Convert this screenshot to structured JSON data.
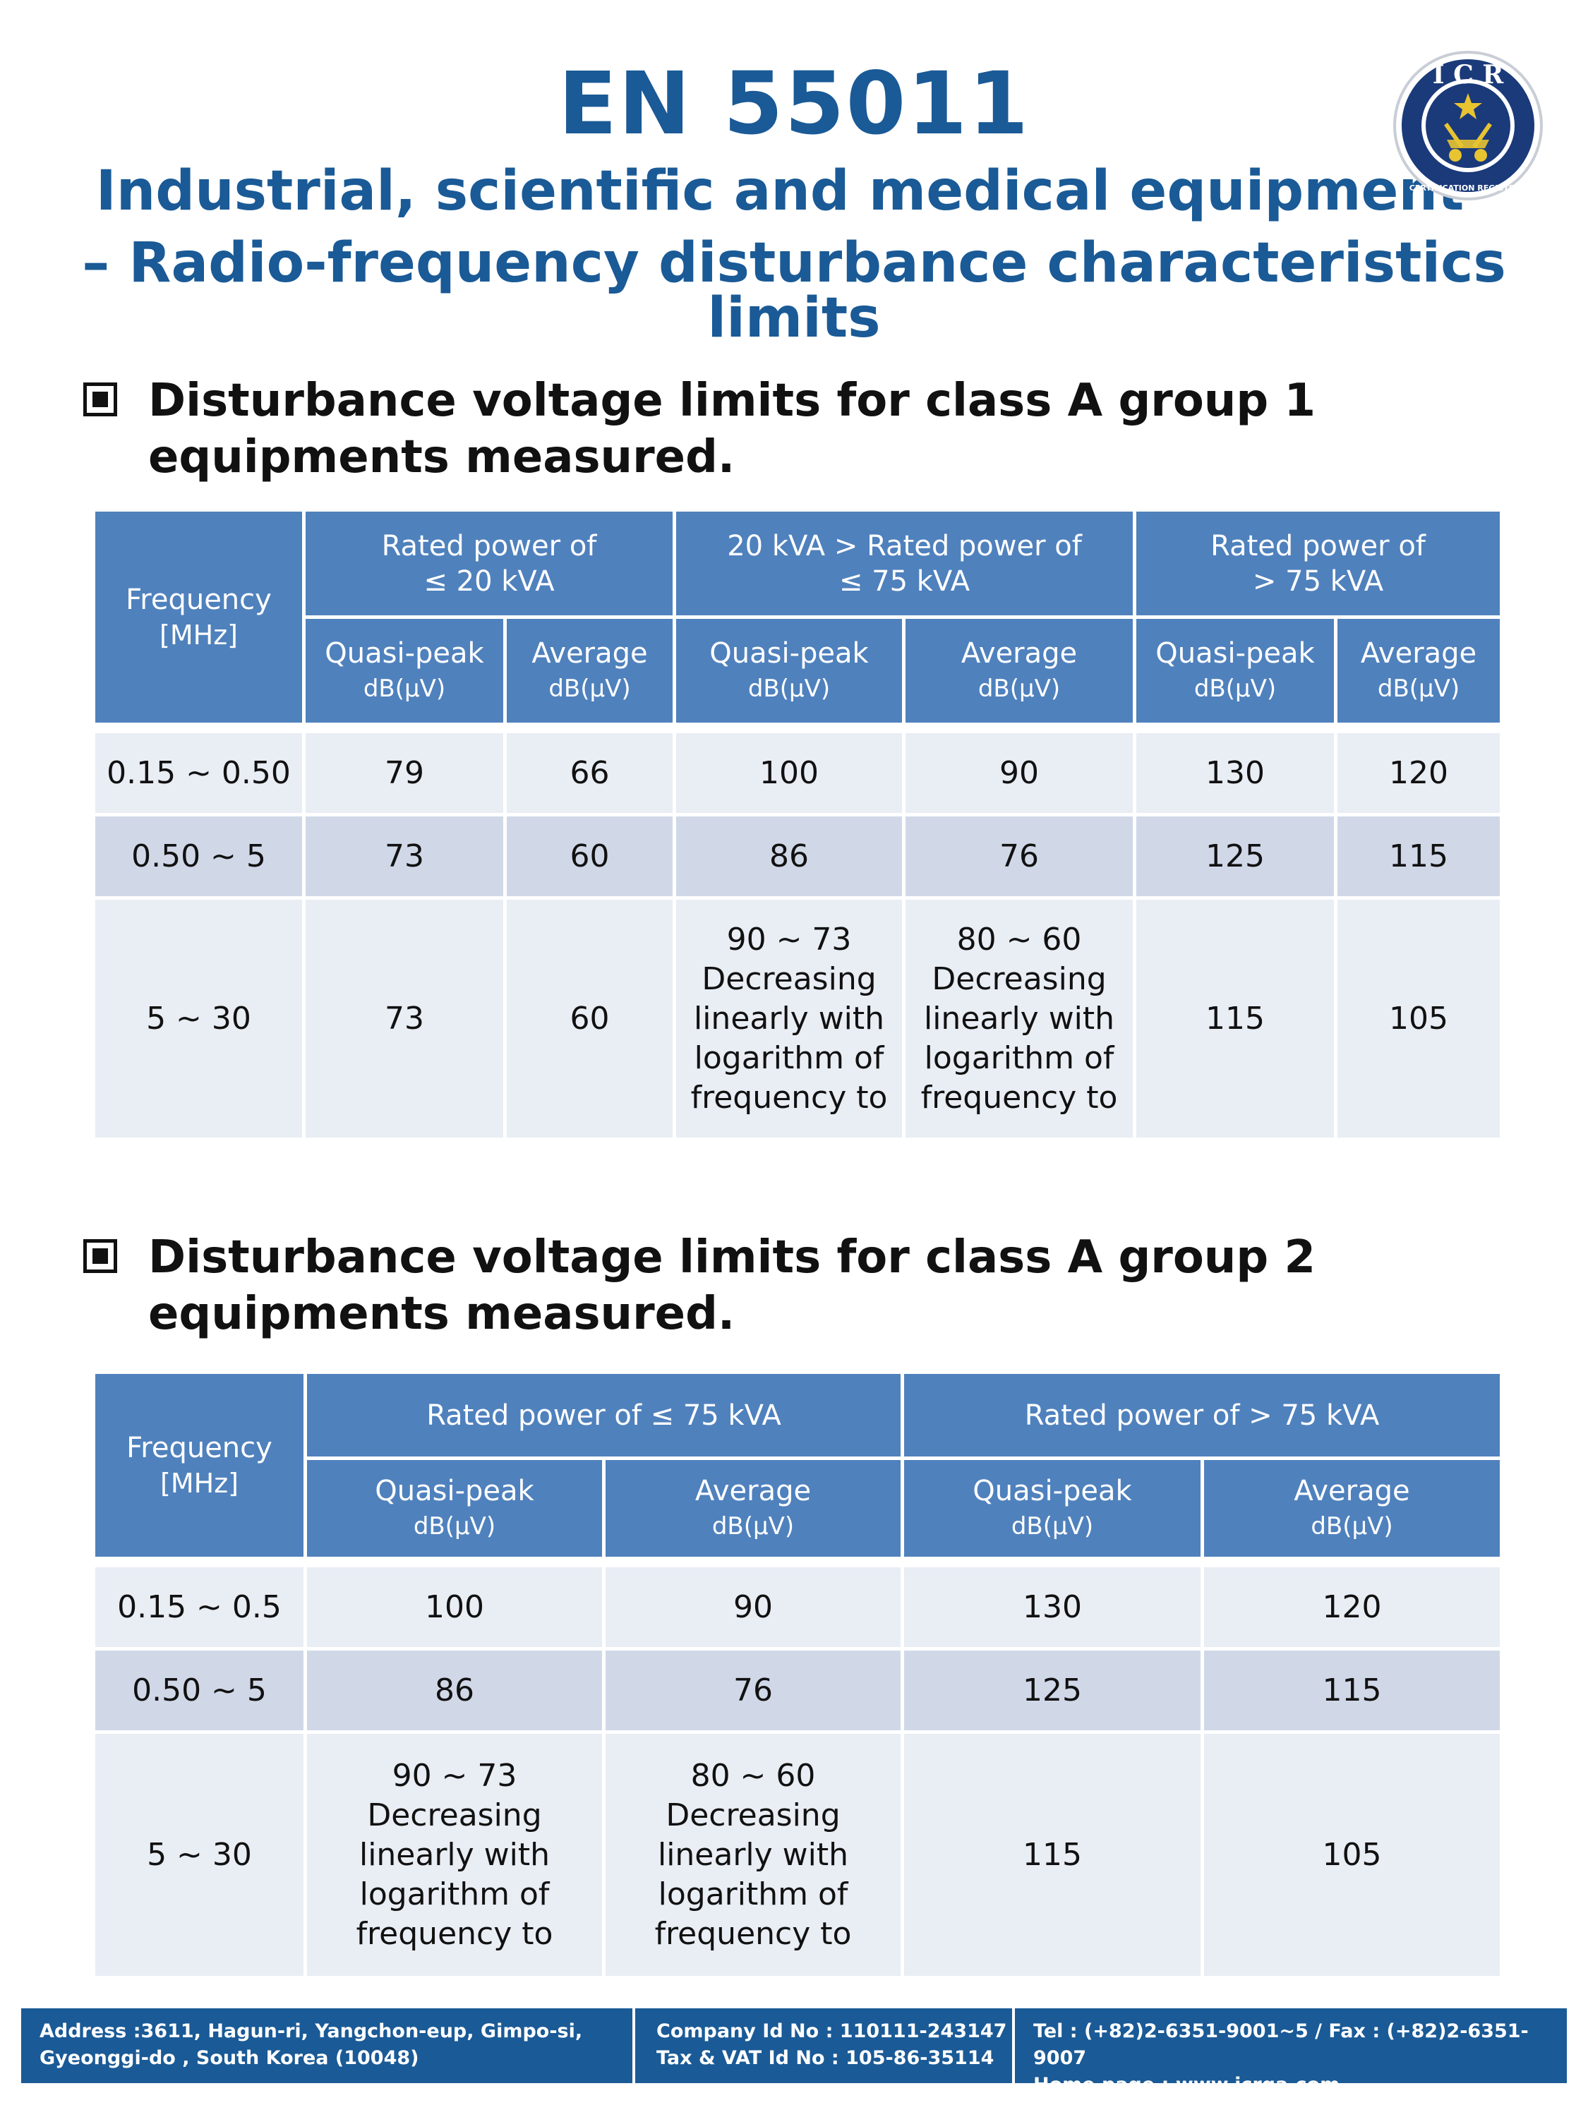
{
  "title": "EN 55011",
  "subtitle_line1": "Industrial, scientific and medical equipment",
  "subtitle_line2": "– Radio-frequency disturbance characteristics limits",
  "logo": {
    "text": "ICR",
    "ring_text": "INTERNATIONAL CERTIFICATION REGISTRAR",
    "colors": {
      "ring": "#1a3a7a",
      "gold": "#e8c431"
    }
  },
  "section1": {
    "heading": "Disturbance voltage limits for class A group 1 equipments measured.",
    "table": {
      "freq_header": "Frequency",
      "freq_unit": "[MHz]",
      "groups": [
        {
          "line1": "Rated power of",
          "line2": "≤ 20 kVA"
        },
        {
          "line1": "20 kVA > Rated power of",
          "line2": "≤ 75 kVA"
        },
        {
          "line1": "Rated power of",
          "line2": "> 75 kVA"
        }
      ],
      "sub": {
        "qp": "Quasi-peak",
        "avg": "Average",
        "unit": "dB(μV)"
      },
      "rows": [
        {
          "freq": "0.15 ~ 0.50",
          "v1": "79",
          "v2": "66",
          "v3": "100",
          "v4": "90",
          "v5": "130",
          "v6": "120"
        },
        {
          "freq": "0.50 ~ 5",
          "v1": "73",
          "v2": "60",
          "v3": "86",
          "v4": "76",
          "v5": "125",
          "v6": "115"
        },
        {
          "freq": "5 ~ 30",
          "v1": "73",
          "v2": "60",
          "v3": [
            "90 ~ 73",
            "Decreasing",
            "linearly with",
            "logarithm of",
            "frequency to"
          ],
          "v4": [
            "80 ~ 60",
            "Decreasing",
            "linearly with",
            "logarithm of",
            "frequency to"
          ],
          "v5": "115",
          "v6": "105"
        }
      ]
    }
  },
  "section2": {
    "heading": "Disturbance voltage limits for class A group 2 equipments measured.",
    "table": {
      "freq_header": "Frequency",
      "freq_unit": "[MHz]",
      "groups": [
        {
          "label": "Rated power of ≤ 75 kVA"
        },
        {
          "label": "Rated power of > 75 kVA"
        }
      ],
      "sub": {
        "qp": "Quasi-peak",
        "avg": "Average",
        "unit": "dB(μV)"
      },
      "rows": [
        {
          "freq": "0.15 ~ 0.5",
          "v1": "100",
          "v2": "90",
          "v3": "130",
          "v4": "120"
        },
        {
          "freq": "0.50 ~ 5",
          "v1": "86",
          "v2": "76",
          "v3": "125",
          "v4": "115"
        },
        {
          "freq": "5 ~ 30",
          "v1": [
            "90 ~ 73",
            "Decreasing",
            "linearly with",
            "logarithm of",
            "frequency to"
          ],
          "v2": [
            "80 ~ 60",
            "Decreasing",
            "linearly with",
            "logarithm of",
            "frequency to"
          ],
          "v3": "115",
          "v4": "105"
        }
      ]
    }
  },
  "footer": {
    "address_line1": "Address :3611, Hagun-ri, Yangchon-eup, Gimpo-si,",
    "address_line2": "Gyeonggi-do , South Korea (10048)",
    "company_id": "Company Id No : 110111-243147",
    "tax_id": "Tax & VAT Id No : 105-86-35114",
    "tel": "Tel : (+82)2-6351-9001~5 / Fax : (+82)2-6351-9007",
    "homepage": "Home page : www.icrqa.com"
  }
}
